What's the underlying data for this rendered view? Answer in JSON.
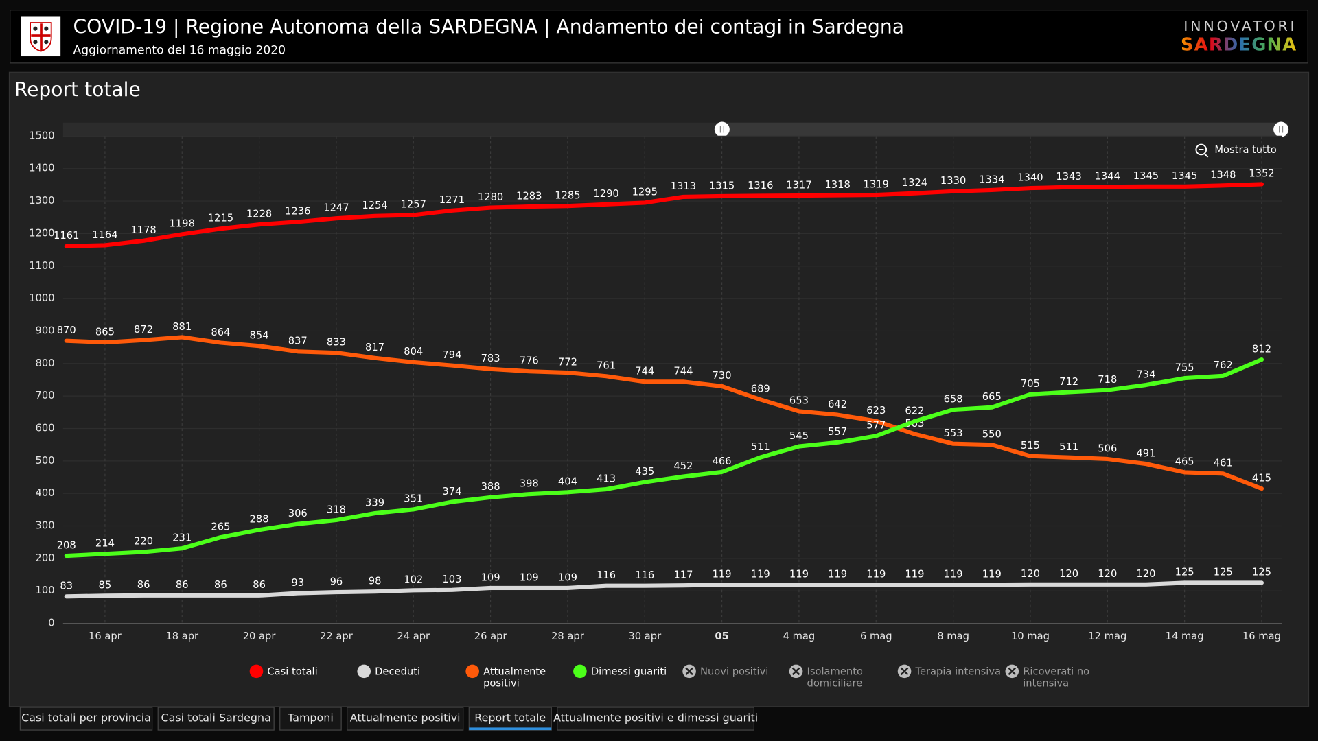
{
  "header": {
    "title": "COVID-19 | Regione Autonoma della SARDEGNA | Andamento dei contagi in Sardegna",
    "subtitle": "Aggiornamento del 16 maggio 2020",
    "brand_top": "INNOVATORI",
    "brand_bottom": "SARDEGNA"
  },
  "panel_title": "Report totale",
  "zoom_button": "Mostra tutto",
  "chart_data": {
    "type": "line",
    "categories": [
      null,
      "16 apr",
      null,
      "18 apr",
      null,
      "20 apr",
      null,
      "22 apr",
      null,
      "24 apr",
      null,
      "26 apr",
      null,
      "28 apr",
      null,
      "30 apr",
      null,
      "05",
      null,
      "4 mag",
      null,
      "6 mag",
      null,
      "8 mag",
      null,
      "10 mag",
      null,
      "12 mag",
      null,
      "14 mag",
      null,
      "16 mag"
    ],
    "series": [
      {
        "name": "Casi totali",
        "color": "#ff0000",
        "values": [
          1161,
          1164,
          1178,
          1198,
          1215,
          1228,
          1236,
          1247,
          1254,
          1257,
          1271,
          1280,
          1283,
          1285,
          1290,
          1295,
          1313,
          1315,
          1316,
          1317,
          1318,
          1319,
          1324,
          1330,
          1334,
          1340,
          1343,
          1344,
          1345,
          1345,
          1348,
          1352
        ]
      },
      {
        "name": "Deceduti",
        "color": "#d9d9d9",
        "values": [
          83,
          85,
          86,
          86,
          86,
          86,
          93,
          96,
          98,
          102,
          103,
          109,
          109,
          109,
          116,
          116,
          117,
          119,
          119,
          119,
          119,
          119,
          119,
          119,
          119,
          120,
          120,
          120,
          120,
          125,
          125,
          125
        ]
      },
      {
        "name": "Attualmente positivi",
        "color": "#ff5a0a",
        "values": [
          870,
          865,
          872,
          881,
          864,
          854,
          837,
          833,
          817,
          804,
          794,
          783,
          776,
          772,
          761,
          744,
          744,
          730,
          689,
          653,
          642,
          623,
          583,
          553,
          550,
          515,
          511,
          506,
          491,
          465,
          461,
          415
        ]
      },
      {
        "name": "Dimessi guariti",
        "color": "#4cff1a",
        "values": [
          208,
          214,
          220,
          231,
          265,
          288,
          306,
          318,
          339,
          351,
          374,
          388,
          398,
          404,
          413,
          435,
          452,
          466,
          511,
          545,
          557,
          577,
          622,
          658,
          665,
          705,
          712,
          718,
          734,
          755,
          762,
          812
        ]
      }
    ],
    "hidden_legend": [
      "Nuovi positivi",
      "Isolamento domiciliare",
      "Terapia intensiva",
      "Ricoverati no intensiva"
    ],
    "ylim": [
      0,
      1500
    ],
    "yticks": [
      0,
      100,
      200,
      300,
      400,
      500,
      600,
      700,
      800,
      900,
      1000,
      1100,
      1200,
      1300,
      1400,
      1500
    ],
    "grid": true
  },
  "tabs": [
    "Casi totali per provincia",
    "Casi totali Sardegna",
    "Tamponi",
    "Attualmente positivi",
    "Report totale",
    "Attualmente positivi e dimessi guariti"
  ],
  "active_tab": 4
}
